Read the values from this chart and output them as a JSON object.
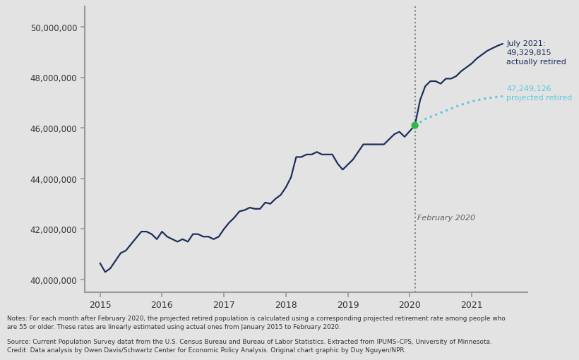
{
  "background_color": "#e3e3e3",
  "chart_bg_color": "#e3e3e3",
  "line_color": "#1b2f5b",
  "projected_color": "#5bc8e0",
  "dot_color": "#2db84b",
  "dashed_line_color": "#808080",
  "spine_color": "#999999",
  "ylim": [
    39500000,
    50800000
  ],
  "xlim_start": 2014.75,
  "xlim_end": 2021.9,
  "feb2020_x": 2020.083,
  "feb2020_label": "February 2020",
  "annotation_july2021": "July 2021:\n49,329,815\nactually retired",
  "annotation_proj": "47,249,126\nprojected retired",
  "notes_line1": "Notes: For each month after February 2020, the projected retired population is calculated using a corresponding projected retirement rate among people who",
  "notes_line2": "are 55 or older. These rates are linearly estimated using actual ones from January 2015 to February 2020.",
  "source_line1": "Source: Current Population Survey datat from the U.S. Census Bureau and Bureau of Labor Statistics. Extracted from IPUMS–CPS, University of Minnesota.",
  "source_line2": "Credit: Data analysis by Owen Davis/Schwartz Center for Economic Policy Analysis. Original chart graphic by Duy Nguyen/NPR.",
  "actual_x": [
    2015.0,
    2015.083,
    2015.167,
    2015.25,
    2015.333,
    2015.417,
    2015.5,
    2015.583,
    2015.667,
    2015.75,
    2015.833,
    2015.917,
    2016.0,
    2016.083,
    2016.167,
    2016.25,
    2016.333,
    2016.417,
    2016.5,
    2016.583,
    2016.667,
    2016.75,
    2016.833,
    2016.917,
    2017.0,
    2017.083,
    2017.167,
    2017.25,
    2017.333,
    2017.417,
    2017.5,
    2017.583,
    2017.667,
    2017.75,
    2017.833,
    2017.917,
    2018.0,
    2018.083,
    2018.167,
    2018.25,
    2018.333,
    2018.417,
    2018.5,
    2018.583,
    2018.667,
    2018.75,
    2018.833,
    2018.917,
    2019.0,
    2019.083,
    2019.167,
    2019.25,
    2019.333,
    2019.417,
    2019.5,
    2019.583,
    2019.667,
    2019.75,
    2019.833,
    2019.917,
    2020.083,
    2020.167,
    2020.25,
    2020.333,
    2020.417,
    2020.5,
    2020.583,
    2020.667,
    2020.75,
    2020.833,
    2020.917,
    2021.0,
    2021.083,
    2021.167,
    2021.25,
    2021.333,
    2021.417,
    2021.5
  ],
  "actual_y": [
    40650000,
    40300000,
    40450000,
    40750000,
    41050000,
    41150000,
    41400000,
    41650000,
    41900000,
    41900000,
    41800000,
    41600000,
    41900000,
    41700000,
    41600000,
    41500000,
    41600000,
    41500000,
    41800000,
    41800000,
    41700000,
    41700000,
    41600000,
    41700000,
    42000000,
    42250000,
    42450000,
    42700000,
    42750000,
    42850000,
    42800000,
    42800000,
    43050000,
    43000000,
    43200000,
    43350000,
    43650000,
    44050000,
    44850000,
    44850000,
    44950000,
    44950000,
    45050000,
    44950000,
    44950000,
    44950000,
    44600000,
    44350000,
    44550000,
    44750000,
    45050000,
    45350000,
    45350000,
    45350000,
    45350000,
    45350000,
    45550000,
    45750000,
    45850000,
    45650000,
    46100000,
    47100000,
    47650000,
    47850000,
    47850000,
    47750000,
    47950000,
    47950000,
    48050000,
    48250000,
    48400000,
    48550000,
    48750000,
    48900000,
    49050000,
    49150000,
    49250000,
    49329815
  ],
  "projected_x": [
    2020.083,
    2020.25,
    2020.5,
    2020.75,
    2021.0,
    2021.25,
    2021.5
  ],
  "projected_y": [
    46100000,
    46350000,
    46600000,
    46850000,
    47050000,
    47180000,
    47249126
  ],
  "feb2020_dot_y": 46100000,
  "yticks": [
    40000000,
    42000000,
    44000000,
    46000000,
    48000000,
    50000000
  ],
  "ytick_labels": [
    "40,000,000",
    "42,000,000",
    "44,000,000",
    "46,000,000",
    "48,000,000",
    "50,000,000"
  ],
  "xticks": [
    2015,
    2016,
    2017,
    2018,
    2019,
    2020,
    2021
  ]
}
